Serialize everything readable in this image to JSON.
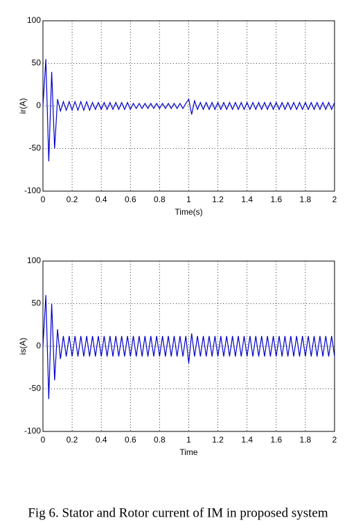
{
  "caption": "Fig 6. Stator and Rotor current of IM in proposed system",
  "chart_data": [
    {
      "type": "line",
      "x_label": "Time(s)",
      "y_label": "ir(A)",
      "x": [
        0,
        0.02,
        0.04,
        0.06,
        0.08,
        0.1,
        0.12,
        0.14,
        0.16,
        0.18,
        0.2,
        0.22,
        0.24,
        0.26,
        0.28,
        0.3,
        0.32,
        0.34,
        0.36,
        0.38,
        0.4,
        0.42,
        0.44,
        0.46,
        0.48,
        0.5,
        0.52,
        0.54,
        0.56,
        0.58,
        0.6,
        0.62,
        0.64,
        0.66,
        0.68,
        0.7,
        0.72,
        0.74,
        0.76,
        0.78,
        0.8,
        0.82,
        0.84,
        0.86,
        0.88,
        0.9,
        0.92,
        0.94,
        0.96,
        0.98,
        1,
        1.02,
        1.04,
        1.06,
        1.08,
        1.1,
        1.12,
        1.14,
        1.16,
        1.18,
        1.2,
        1.22,
        1.24,
        1.26,
        1.28,
        1.3,
        1.32,
        1.34,
        1.36,
        1.38,
        1.4,
        1.42,
        1.44,
        1.46,
        1.48,
        1.5,
        1.52,
        1.54,
        1.56,
        1.58,
        1.6,
        1.62,
        1.64,
        1.66,
        1.68,
        1.7,
        1.72,
        1.74,
        1.76,
        1.78,
        1.8,
        1.82,
        1.84,
        1.86,
        1.88,
        1.9,
        1.92,
        1.94,
        1.96,
        1.98,
        2
      ],
      "series": [
        {
          "color": "#0000cc",
          "values": [
            0,
            55,
            -65,
            40,
            -50,
            8,
            -6,
            5,
            -5,
            5,
            -5,
            5,
            -5,
            5,
            -5,
            5,
            -5,
            4,
            -4,
            4,
            -4,
            4,
            -4,
            4,
            -4,
            4,
            -4,
            4,
            -4,
            4,
            -4,
            3,
            -3,
            3,
            -3,
            3,
            -3,
            3,
            -3,
            3,
            -3,
            3,
            -3,
            3,
            -3,
            3,
            -3,
            3,
            -3,
            3,
            8,
            -10,
            6,
            -4,
            4,
            -4,
            4,
            -4,
            4,
            -4,
            4,
            -4,
            4,
            -4,
            4,
            -4,
            4,
            -4,
            4,
            -4,
            4,
            -4,
            4,
            -4,
            4,
            -4,
            4,
            -4,
            4,
            -4,
            4,
            -4,
            4,
            -4,
            4,
            -4,
            4,
            -4,
            4,
            -4,
            4,
            -4,
            4,
            -4,
            4,
            -4,
            4,
            -4,
            4,
            -4,
            4
          ]
        }
      ],
      "xlim": [
        0,
        2
      ],
      "ylim": [
        -100,
        100
      ],
      "xticks": [
        0,
        0.2,
        0.4,
        0.6,
        0.8,
        1,
        1.2,
        1.4,
        1.6,
        1.8,
        2
      ],
      "yticks": [
        -100,
        -50,
        0,
        50,
        100
      ],
      "grid": true
    },
    {
      "type": "line",
      "x_label": "Time",
      "y_label": "is(A)",
      "x": [
        0,
        0.02,
        0.04,
        0.06,
        0.08,
        0.1,
        0.12,
        0.14,
        0.16,
        0.18,
        0.2,
        0.22,
        0.24,
        0.26,
        0.28,
        0.3,
        0.32,
        0.34,
        0.36,
        0.38,
        0.4,
        0.42,
        0.44,
        0.46,
        0.48,
        0.5,
        0.52,
        0.54,
        0.56,
        0.58,
        0.6,
        0.62,
        0.64,
        0.66,
        0.68,
        0.7,
        0.72,
        0.74,
        0.76,
        0.78,
        0.8,
        0.82,
        0.84,
        0.86,
        0.88,
        0.9,
        0.92,
        0.94,
        0.96,
        0.98,
        1,
        1.02,
        1.04,
        1.06,
        1.08,
        1.1,
        1.12,
        1.14,
        1.16,
        1.18,
        1.2,
        1.22,
        1.24,
        1.26,
        1.28,
        1.3,
        1.32,
        1.34,
        1.36,
        1.38,
        1.4,
        1.42,
        1.44,
        1.46,
        1.48,
        1.5,
        1.52,
        1.54,
        1.56,
        1.58,
        1.6,
        1.62,
        1.64,
        1.66,
        1.68,
        1.7,
        1.72,
        1.74,
        1.76,
        1.78,
        1.8,
        1.82,
        1.84,
        1.86,
        1.88,
        1.9,
        1.92,
        1.94,
        1.96,
        1.98,
        2
      ],
      "series": [
        {
          "color": "#0000cc",
          "values": [
            0,
            60,
            -62,
            50,
            -40,
            20,
            -15,
            12,
            -12,
            12,
            -12,
            12,
            -12,
            12,
            -12,
            12,
            -12,
            12,
            -12,
            12,
            -12,
            12,
            -12,
            12,
            -12,
            12,
            -12,
            12,
            -12,
            12,
            -12,
            12,
            -12,
            12,
            -12,
            12,
            -12,
            12,
            -12,
            12,
            -12,
            12,
            -12,
            12,
            -12,
            12,
            -12,
            12,
            -12,
            12,
            -20,
            15,
            -12,
            12,
            -12,
            12,
            -12,
            12,
            -12,
            12,
            -12,
            12,
            -12,
            12,
            -12,
            12,
            -12,
            12,
            -12,
            12,
            -12,
            12,
            -12,
            12,
            -12,
            12,
            -12,
            12,
            -12,
            12,
            -12,
            12,
            -12,
            12,
            -12,
            12,
            -12,
            12,
            -12,
            12,
            -12,
            12,
            -12,
            12,
            -12,
            12,
            -12,
            12,
            -12,
            12,
            -12
          ]
        }
      ],
      "xlim": [
        0,
        2
      ],
      "ylim": [
        -100,
        100
      ],
      "xticks": [
        0,
        0.2,
        0.4,
        0.6,
        0.8,
        1,
        1.2,
        1.4,
        1.6,
        1.8,
        2
      ],
      "yticks": [
        -100,
        -50,
        0,
        50,
        100
      ],
      "grid": true
    }
  ]
}
